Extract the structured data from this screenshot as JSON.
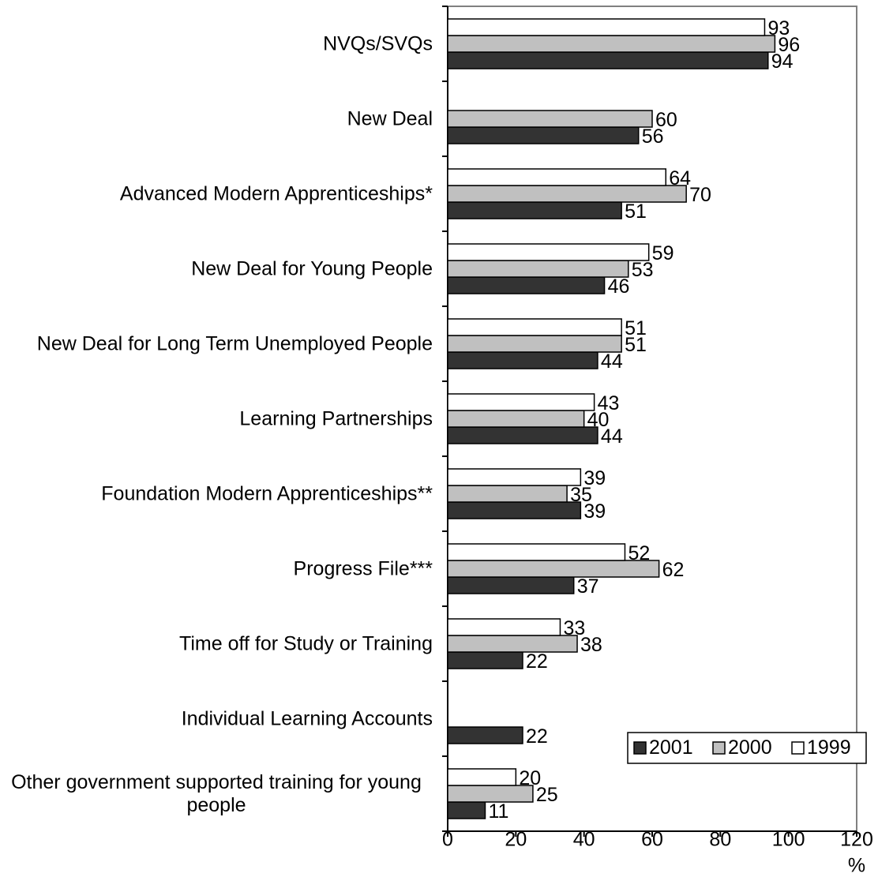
{
  "chart_data": {
    "type": "barh",
    "categories": [
      "NVQs/SVQs",
      "New Deal",
      "Advanced Modern Apprenticeships*",
      "New Deal for Young People",
      "New Deal for Long Term Unemployed People",
      "Learning Partnerships",
      "Foundation Modern Apprenticeships**",
      "Progress File***",
      "Time off for Study or Training",
      "Individual Learning Accounts",
      "Other government supported training for young people"
    ],
    "series": [
      {
        "name": "2001",
        "color": "#333333",
        "values": [
          94,
          56,
          51,
          46,
          44,
          44,
          39,
          37,
          22,
          22,
          11
        ]
      },
      {
        "name": "2000",
        "color": "#c0c0c0",
        "values": [
          96,
          60,
          70,
          53,
          51,
          40,
          35,
          62,
          38,
          null,
          25
        ]
      },
      {
        "name": "1999",
        "color": "#ffffff",
        "values": [
          93,
          null,
          64,
          59,
          51,
          43,
          39,
          52,
          33,
          null,
          20
        ]
      }
    ],
    "xlabel": "%",
    "xlim": [
      0,
      120
    ],
    "xticks": [
      0,
      20,
      40,
      60,
      80,
      100,
      120
    ],
    "legend": "lower right"
  }
}
